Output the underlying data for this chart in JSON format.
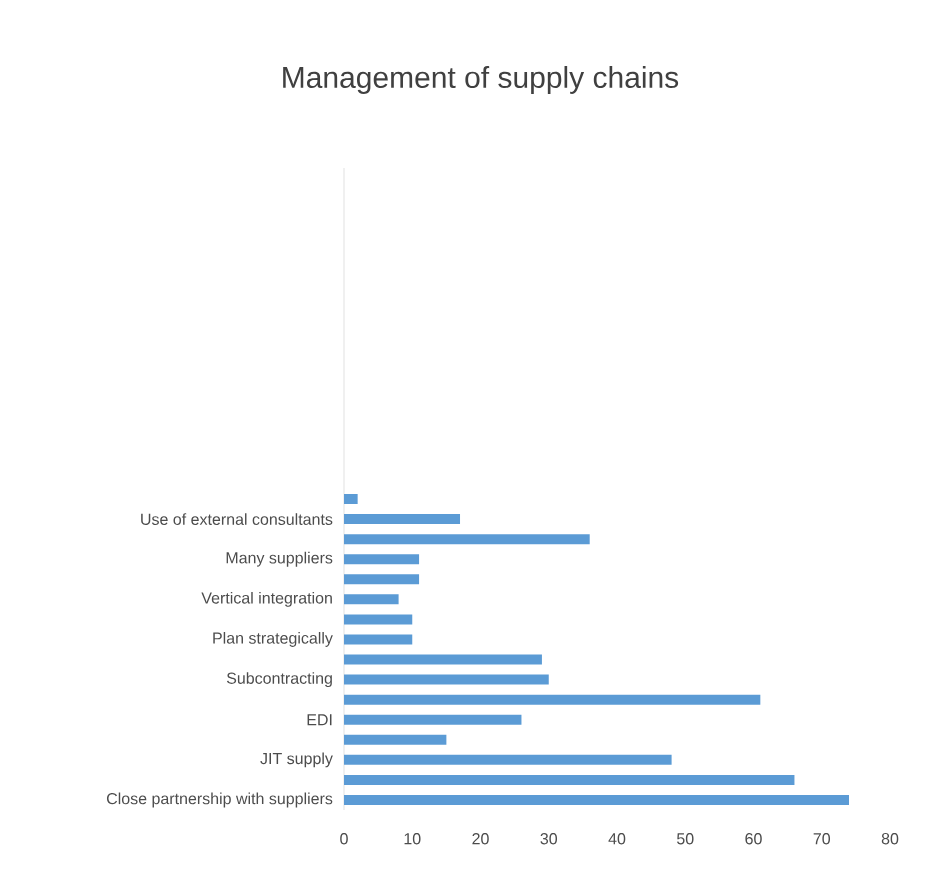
{
  "chart_data": {
    "type": "bar",
    "orientation": "horizontal",
    "title": "Management of supply chains",
    "categories": [
      null,
      null,
      null,
      null,
      null,
      null,
      null,
      null,
      null,
      null,
      null,
      null,
      null,
      null,
      null,
      null,
      null,
      "Use of external consultants",
      null,
      "Many suppliers",
      null,
      "Vertical integration",
      null,
      "Plan strategically",
      null,
      "Subcontracting",
      null,
      "EDI",
      null,
      "JIT supply",
      null,
      "Close partnership with suppliers"
    ],
    "values": [
      null,
      null,
      null,
      null,
      null,
      null,
      null,
      null,
      null,
      null,
      null,
      null,
      null,
      null,
      null,
      null,
      2,
      17,
      36,
      11,
      11,
      8,
      10,
      10,
      29,
      30,
      61,
      26,
      15,
      48,
      66,
      74
    ],
    "color": "#5b9bd5",
    "xlim": [
      0,
      80
    ],
    "xticks": [
      0,
      10,
      20,
      30,
      40,
      50,
      60,
      70,
      80
    ]
  }
}
